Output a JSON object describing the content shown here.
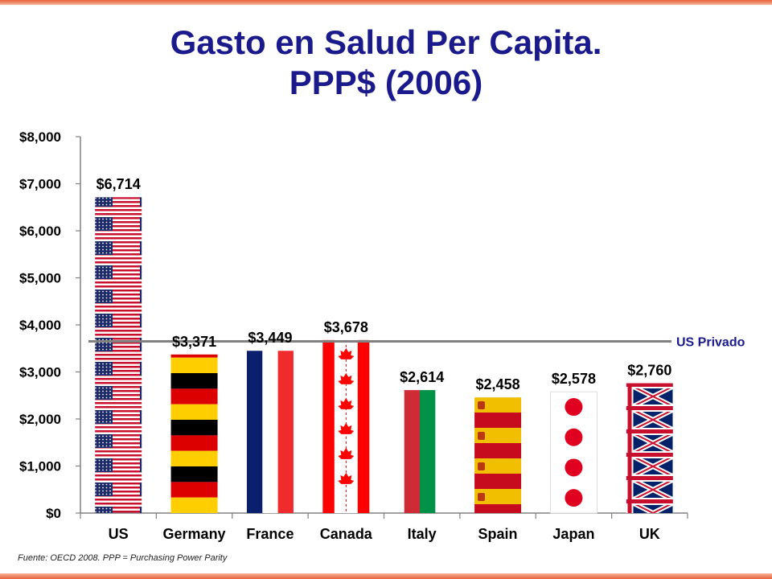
{
  "page": {
    "title_line1": "Gasto en Salud Per Capita.",
    "title_line2": "PPP$ (2006)",
    "source_note": "Fuente: OECD 2008. PPP = Purchasing Power Parity"
  },
  "colors": {
    "title": "#1a1a8c",
    "accent_border": "#e8603a",
    "reference_line": "#808080"
  },
  "chart_data": {
    "type": "bar",
    "categories": [
      "US",
      "Germany",
      "France",
      "Canada",
      "Italy",
      "Spain",
      "Japan",
      "UK"
    ],
    "values": [
      6714,
      3371,
      3449,
      3678,
      2614,
      2458,
      2578,
      2760
    ],
    "data_labels": [
      "$6,714",
      "$3,371",
      "$3,449",
      "$3,678",
      "$2,614",
      "$2,458",
      "$2,578",
      "$2,760"
    ],
    "bar_fill": [
      "us-flag",
      "germany-flag",
      "france-flag",
      "canada-flag",
      "italy-flag",
      "spain-flag",
      "japan-flag",
      "uk-flag"
    ],
    "ylim": [
      0,
      8000
    ],
    "yticks": [
      0,
      1000,
      2000,
      3000,
      4000,
      5000,
      6000,
      7000,
      8000
    ],
    "ytick_labels": [
      "$0",
      "$1,000",
      "$2,000",
      "$3,000",
      "$4,000",
      "$5,000",
      "$6,000",
      "$7,000",
      "$8,000"
    ],
    "reference_line": {
      "value": 3650,
      "label": "US Privado"
    },
    "grid": false,
    "legend": "none"
  }
}
